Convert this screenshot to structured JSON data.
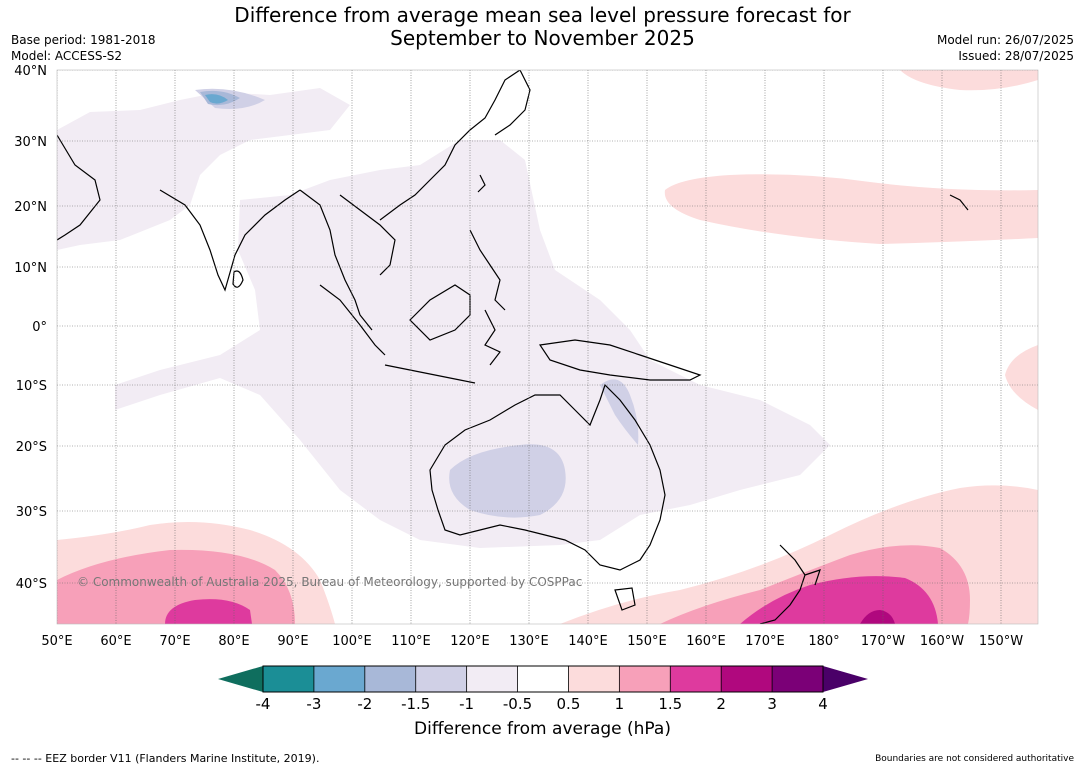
{
  "title_line1": "Difference from average mean sea level pressure forecast for",
  "title_line2": "September to November 2025",
  "base_period": "Base period: 1981-2018",
  "model": "Model: ACCESS-S2",
  "model_run": "Model run: 26/07/2025",
  "issued": "Issued: 28/07/2025",
  "copyright": "© Commonwealth of Australia 2025, Bureau of Meteorology, supported by COSPPac",
  "lat_labels": [
    "40°N",
    "30°N",
    "20°N",
    "10°N",
    "0°",
    "10°S",
    "20°S",
    "30°S",
    "40°S"
  ],
  "lon_labels": [
    "50°E",
    "60°E",
    "70°E",
    "80°E",
    "90°E",
    "100°E",
    "110°E",
    "120°E",
    "130°E",
    "140°E",
    "150°E",
    "160°E",
    "170°E",
    "180°",
    "170°W",
    "160°W",
    "150°W"
  ],
  "colorbar": {
    "ticks": [
      "-4",
      "-3",
      "-2",
      "-1.5",
      "-1",
      "-0.5",
      "0.5",
      "1",
      "1.5",
      "2",
      "3",
      "4"
    ],
    "colors": [
      "#1b8e96",
      "#6aa8d0",
      "#a8b8d8",
      "#d0d0e6",
      "#f2ecf4",
      "#ffffff",
      "#fcdcdc",
      "#f7a0b9",
      "#de3a9e",
      "#b0087e",
      "#7b0077"
    ],
    "low_extend_color": "#0f6e5e",
    "high_extend_color": "#4a0068",
    "label": "Difference from average (hPa)"
  },
  "footer_left": "--  --  -- EEZ border V11 (Flanders Marine Institute, 2019).",
  "footer_right": "Boundaries are not considered authoritative"
}
